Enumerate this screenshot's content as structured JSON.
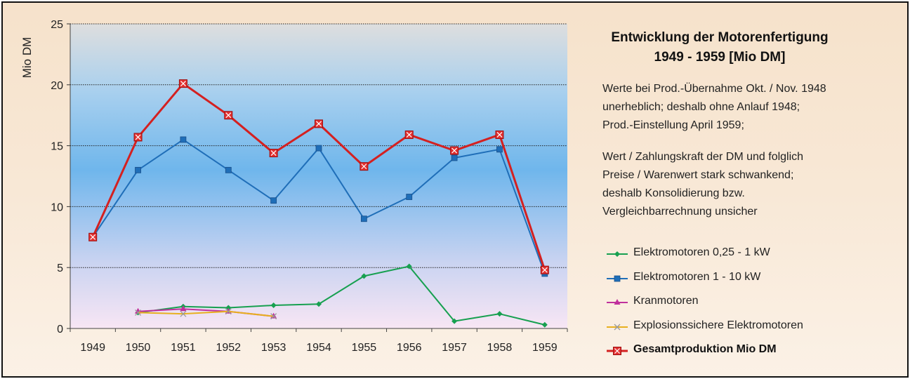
{
  "chart_data": {
    "type": "line",
    "categories": [
      "1949",
      "1950",
      "1951",
      "1952",
      "1953",
      "1954",
      "1955",
      "1956",
      "1957",
      "1958",
      "1959"
    ],
    "ylabel": "Mio DM",
    "ylim": [
      0,
      25
    ],
    "yticks": [
      "0",
      "5",
      "10",
      "15",
      "20",
      "25"
    ],
    "grid": true,
    "legend_position": "right",
    "series": [
      {
        "name": "Elektromotoren 0,25 - 1 kW",
        "color": "#17a050",
        "marker": "diamond",
        "values": [
          null,
          1.3,
          1.8,
          1.7,
          1.9,
          2.0,
          4.3,
          5.1,
          0.6,
          1.2,
          0.3
        ]
      },
      {
        "name": "Elektromotoren  1 - 10 kW",
        "color": "#1f6eb8",
        "marker": "square",
        "values": [
          7.5,
          13.0,
          15.5,
          13.0,
          10.5,
          14.8,
          9.0,
          10.8,
          14.0,
          14.7,
          4.5
        ]
      },
      {
        "name": "Kranmotoren",
        "color": "#c0309c",
        "marker": "triangle",
        "values": [
          null,
          1.4,
          1.6,
          1.4,
          1.0,
          null,
          null,
          null,
          null,
          null,
          null
        ]
      },
      {
        "name": "Explosionssichere Elektromotoren",
        "color": "#e8b020",
        "marker": "x",
        "values": [
          null,
          1.3,
          1.2,
          1.4,
          1.0,
          null,
          null,
          null,
          null,
          null,
          null
        ]
      },
      {
        "name": "Gesamtproduktion Mio DM",
        "color": "#d42020",
        "marker": "boxx",
        "bold": true,
        "values": [
          7.5,
          15.7,
          20.1,
          17.5,
          14.4,
          16.8,
          13.3,
          15.9,
          14.6,
          15.9,
          4.8
        ]
      }
    ]
  },
  "title_lines": [
    "Entwicklung der Motorenfertigung",
    "1949 - 1959 [Mio DM]"
  ],
  "notes": [
    [
      "Werte bei Prod.-Übernahme Okt. / Nov. 1948",
      "unerheblich; deshalb ohne Anlauf 1948;",
      "Prod.-Einstellung April 1959;"
    ],
    [
      "Wert / Zahlungskraft der DM   und folglich",
      "Preise / Warenwert stark schwankend;",
      "deshalb Konsolidierung bzw.",
      "Vergleichbarrechnung unsicher"
    ]
  ]
}
